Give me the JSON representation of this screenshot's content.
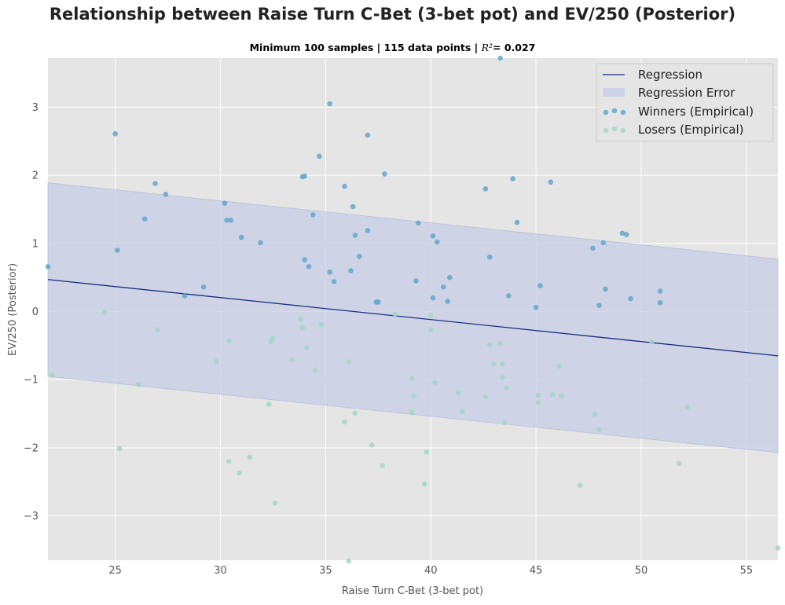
{
  "chart_data": {
    "type": "scatter",
    "title": "Relationship between Raise Turn C-Bet (3-bet pot) and EV/250 (Posterior)",
    "subtitle_prefix": "Minimum 100 samples | 115 data points | ",
    "subtitle_r2_symbol": "R²",
    "subtitle_r2_value": "=  0.027",
    "xlabel": "Raise Turn C-Bet (3-bet pot)",
    "ylabel": "EV/250 (Posterior)",
    "xlim": [
      21.8,
      56.5
    ],
    "ylim": [
      -3.65,
      3.72
    ],
    "xticks": [
      25,
      30,
      35,
      40,
      45,
      50,
      55
    ],
    "yticks": [
      -3,
      -2,
      -1,
      0,
      1,
      2,
      3
    ],
    "grid": true,
    "legend_position": "top-right",
    "legend": [
      "Regression",
      "Regression Error",
      "Winners (Empirical)",
      "Losers (Empirical)"
    ],
    "colors": {
      "regression": "#1a2f80",
      "error_band": "#c5cee6",
      "winners": "#5aa4c9",
      "losers": "#9fd6c4",
      "plot_bg": "#e5e5e5",
      "grid": "#ffffff"
    },
    "regression": {
      "x": [
        21.8,
        56.5
      ],
      "y": [
        0.47,
        -0.65
      ]
    },
    "error_band": {
      "x": [
        21.8,
        56.5
      ],
      "upper": [
        1.89,
        0.77
      ],
      "lower": [
        -0.95,
        -2.07
      ]
    },
    "series": [
      {
        "name": "Winners (Empirical)",
        "points": [
          [
            21.8,
            0.66
          ],
          [
            25.0,
            2.61
          ],
          [
            25.1,
            0.9
          ],
          [
            26.4,
            1.36
          ],
          [
            26.9,
            1.88
          ],
          [
            27.4,
            1.72
          ],
          [
            28.3,
            0.23
          ],
          [
            29.2,
            0.36
          ],
          [
            30.2,
            1.59
          ],
          [
            30.3,
            1.34
          ],
          [
            30.5,
            1.34
          ],
          [
            31.0,
            1.09
          ],
          [
            31.9,
            1.01
          ],
          [
            33.9,
            1.98
          ],
          [
            34.0,
            1.99
          ],
          [
            34.0,
            0.76
          ],
          [
            34.2,
            0.66
          ],
          [
            34.4,
            1.42
          ],
          [
            34.7,
            2.28
          ],
          [
            35.2,
            3.05
          ],
          [
            35.2,
            0.58
          ],
          [
            35.4,
            0.44
          ],
          [
            35.9,
            1.84
          ],
          [
            36.2,
            0.6
          ],
          [
            36.3,
            1.54
          ],
          [
            36.4,
            1.12
          ],
          [
            36.6,
            0.81
          ],
          [
            37.0,
            1.19
          ],
          [
            37.0,
            2.59
          ],
          [
            37.4,
            0.14
          ],
          [
            37.5,
            0.14
          ],
          [
            37.8,
            2.02
          ],
          [
            39.4,
            1.3
          ],
          [
            39.3,
            0.45
          ],
          [
            40.1,
            1.11
          ],
          [
            40.1,
            0.2
          ],
          [
            40.3,
            1.02
          ],
          [
            40.6,
            0.36
          ],
          [
            40.8,
            0.15
          ],
          [
            40.9,
            0.5
          ],
          [
            42.6,
            1.8
          ],
          [
            42.8,
            0.8
          ],
          [
            43.3,
            3.72
          ],
          [
            43.7,
            0.23
          ],
          [
            43.9,
            1.95
          ],
          [
            44.1,
            1.31
          ],
          [
            45.0,
            0.06
          ],
          [
            45.2,
            0.38
          ],
          [
            45.7,
            1.9
          ],
          [
            47.7,
            0.93
          ],
          [
            48.0,
            0.09
          ],
          [
            48.2,
            1.01
          ],
          [
            48.3,
            0.33
          ],
          [
            49.1,
            1.15
          ],
          [
            49.3,
            1.13
          ],
          [
            49.5,
            0.19
          ],
          [
            50.9,
            0.3
          ],
          [
            50.9,
            0.13
          ]
        ]
      },
      {
        "name": "Losers (Empirical)",
        "points": [
          [
            22.0,
            -0.93
          ],
          [
            24.5,
            -0.01
          ],
          [
            25.2,
            -2.01
          ],
          [
            26.1,
            -1.07
          ],
          [
            27.0,
            -0.27
          ],
          [
            29.8,
            -0.73
          ],
          [
            30.4,
            -2.2
          ],
          [
            30.4,
            -0.43
          ],
          [
            30.9,
            -2.37
          ],
          [
            31.4,
            -2.14
          ],
          [
            32.3,
            -1.36
          ],
          [
            32.4,
            -0.44
          ],
          [
            32.5,
            -0.39
          ],
          [
            32.6,
            -2.81
          ],
          [
            33.4,
            -0.71
          ],
          [
            33.8,
            -0.11
          ],
          [
            33.9,
            -0.24
          ],
          [
            34.1,
            -0.53
          ],
          [
            34.5,
            -0.86
          ],
          [
            34.8,
            -0.19
          ],
          [
            35.9,
            -1.62
          ],
          [
            36.1,
            -0.74
          ],
          [
            36.1,
            -3.66
          ],
          [
            36.4,
            -1.49
          ],
          [
            37.2,
            -1.96
          ],
          [
            37.7,
            -2.26
          ],
          [
            38.3,
            -0.04
          ],
          [
            39.1,
            -0.98
          ],
          [
            39.1,
            -1.48
          ],
          [
            39.2,
            -1.24
          ],
          [
            39.7,
            -2.53
          ],
          [
            39.8,
            -2.06
          ],
          [
            40.0,
            -0.05
          ],
          [
            40.0,
            -0.27
          ],
          [
            40.2,
            -1.04
          ],
          [
            41.3,
            -1.19
          ],
          [
            41.5,
            -1.47
          ],
          [
            42.6,
            -1.25
          ],
          [
            42.8,
            -0.49
          ],
          [
            43.0,
            -0.77
          ],
          [
            43.3,
            -0.47
          ],
          [
            43.4,
            -0.97
          ],
          [
            43.4,
            -0.77
          ],
          [
            43.5,
            -1.63
          ],
          [
            43.6,
            -1.12
          ],
          [
            45.1,
            -1.23
          ],
          [
            45.1,
            -1.33
          ],
          [
            45.8,
            -1.22
          ],
          [
            46.1,
            -0.8
          ],
          [
            46.2,
            -1.24
          ],
          [
            47.1,
            -2.55
          ],
          [
            47.8,
            -1.51
          ],
          [
            48.0,
            -1.73
          ],
          [
            50.5,
            -0.44
          ],
          [
            51.8,
            -2.23
          ],
          [
            52.2,
            -1.4
          ],
          [
            56.5,
            -3.47
          ]
        ]
      }
    ]
  }
}
